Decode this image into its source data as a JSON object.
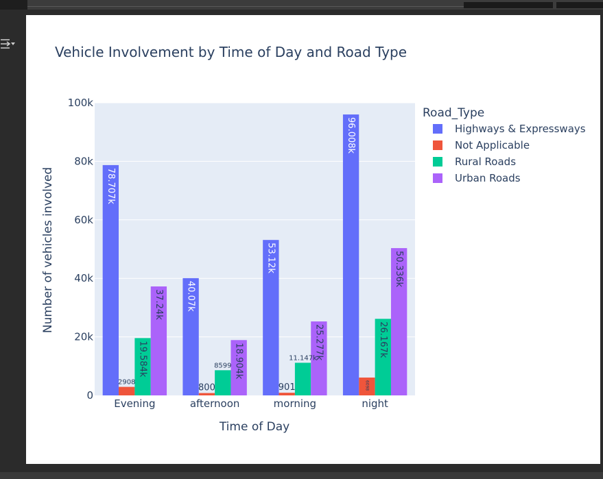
{
  "chart_data": {
    "type": "bar",
    "title": "Vehicle Involvement by Time of Day and Road Type",
    "xlabel": "Time of Day",
    "ylabel": "Number of vehicles involved",
    "legend_title": "Road_Type",
    "legend_position": "right",
    "ylim": [
      0,
      100000
    ],
    "yticks": [
      0,
      20000,
      40000,
      60000,
      80000,
      100000
    ],
    "ytick_labels": [
      "0",
      "20k",
      "40k",
      "60k",
      "80k",
      "100k"
    ],
    "categories": [
      "Evening",
      "afternoon",
      "morning",
      "night"
    ],
    "series": [
      {
        "name": "Highways & Expressways",
        "color": "#636efa",
        "values": [
          78707,
          40070,
          53120,
          96008
        ],
        "labels": [
          "78.707k",
          "40.07k",
          "53.12k",
          "96.008k"
        ]
      },
      {
        "name": "Not Applicable",
        "color": "#ef553b",
        "values": [
          2908,
          800,
          901,
          6098
        ],
        "labels": [
          "2908",
          "800",
          "901",
          "6098"
        ]
      },
      {
        "name": "Rural Roads",
        "color": "#00cc96",
        "values": [
          19584,
          8599,
          11147,
          26167
        ],
        "labels": [
          "19.584k",
          "8599",
          "11.147k",
          "26.167k"
        ]
      },
      {
        "name": "Urban Roads",
        "color": "#ab63fa",
        "values": [
          37240,
          18904,
          25277,
          50336
        ],
        "labels": [
          "37.24k",
          "18.904k",
          "25.277k",
          "50.336k"
        ]
      }
    ]
  },
  "colors": {
    "plot_background": "#e5ecf6",
    "text": "#2a3f5f"
  },
  "ui": {
    "side_control_icon": "collapse-expand-icon"
  }
}
